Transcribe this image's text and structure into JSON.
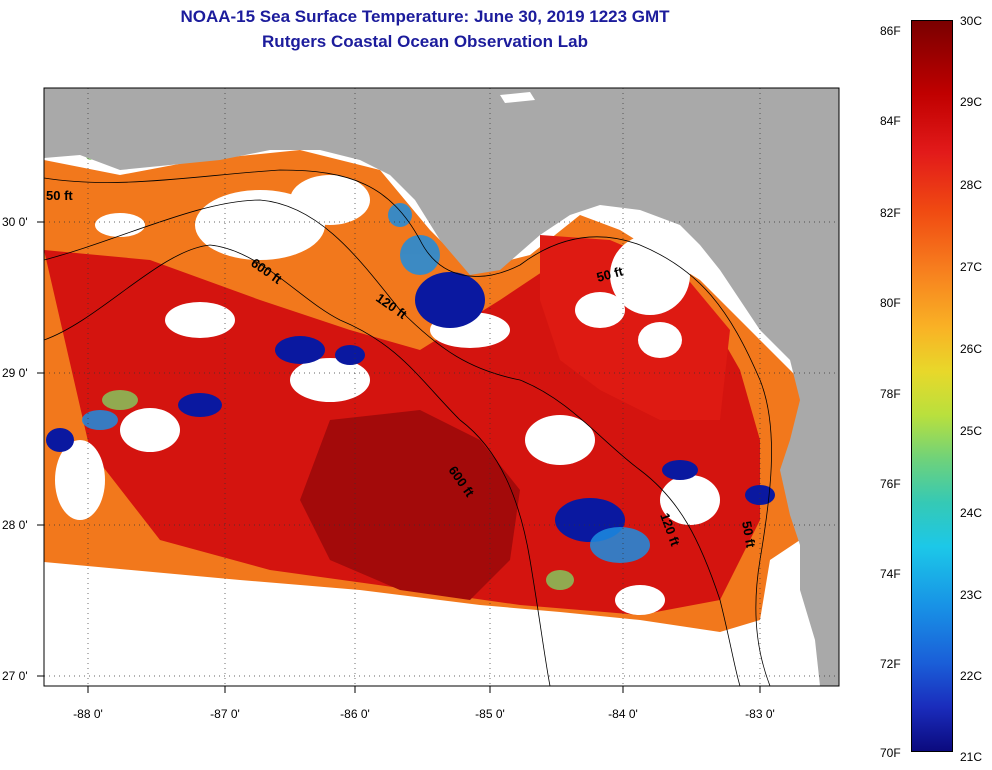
{
  "title": {
    "line1": "NOAA-15 Sea Surface Temperature:  June 30, 2019 1223 GMT",
    "line2": "Rutgers Coastal Ocean Observation Lab"
  },
  "axes": {
    "lon_ticks": [
      "-88 0'",
      "-87 0'",
      "-86 0'",
      "-85 0'",
      "-84 0'",
      "-83 0'"
    ],
    "lat_ticks": [
      "30 0'",
      "29 0'",
      "28 0'",
      "27 0'"
    ]
  },
  "contours": {
    "labels": [
      "50 ft",
      "600 ft",
      "120 ft",
      "50 ft",
      "600 ft",
      "120 ft",
      "50 ft"
    ]
  },
  "colorbar": {
    "fahrenheit": [
      "86F",
      "84F",
      "82F",
      "80F",
      "78F",
      "76F",
      "74F",
      "72F",
      "70F"
    ],
    "celsius": [
      "30C",
      "29C",
      "28C",
      "27C",
      "26C",
      "25C",
      "24C",
      "23C",
      "22C",
      "21C"
    ]
  },
  "colors": {
    "land": "#a9a9a9",
    "title": "#1c1c9c",
    "warm": "#d4140f",
    "hot": "#a30a0a",
    "orange": "#f2781c",
    "cold": "#0a18a0"
  }
}
